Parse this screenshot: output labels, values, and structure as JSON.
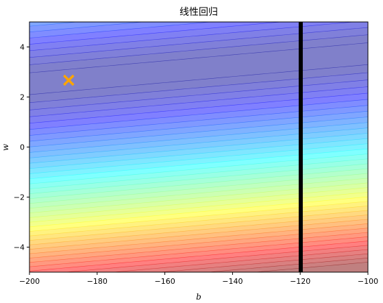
{
  "chart_data": {
    "type": "contour",
    "title": "线性回归",
    "xlabel": "b",
    "ylabel": "w",
    "xlim": [
      -200,
      -100
    ],
    "ylim": [
      -5,
      5
    ],
    "x_ticks": [
      -200,
      -180,
      -160,
      -140,
      -120,
      -100
    ],
    "x_tick_labels": [
      "−200",
      "−180",
      "−160",
      "−140",
      "−120",
      "−100"
    ],
    "y_ticks": [
      -4,
      -2,
      0,
      2,
      4
    ],
    "y_tick_labels": [
      "−4",
      "−2",
      "0",
      "2",
      "4"
    ],
    "colormap": "jet",
    "color_note": "low loss (blue/purple) at top, high loss (red) at bottom",
    "markers": [
      {
        "label": "optimum",
        "shape": "x",
        "color": "#ffa500",
        "b": -188.4,
        "w": 2.67
      }
    ],
    "path": {
      "color": "#000000",
      "points": [
        [
          -120,
          5
        ],
        [
          -120,
          -5
        ],
        [
          -119.5,
          -5
        ],
        [
          -119.5,
          5
        ],
        [
          -120.2,
          5
        ],
        [
          -120.2,
          -5
        ]
      ]
    },
    "grid": false,
    "legend": "none"
  }
}
